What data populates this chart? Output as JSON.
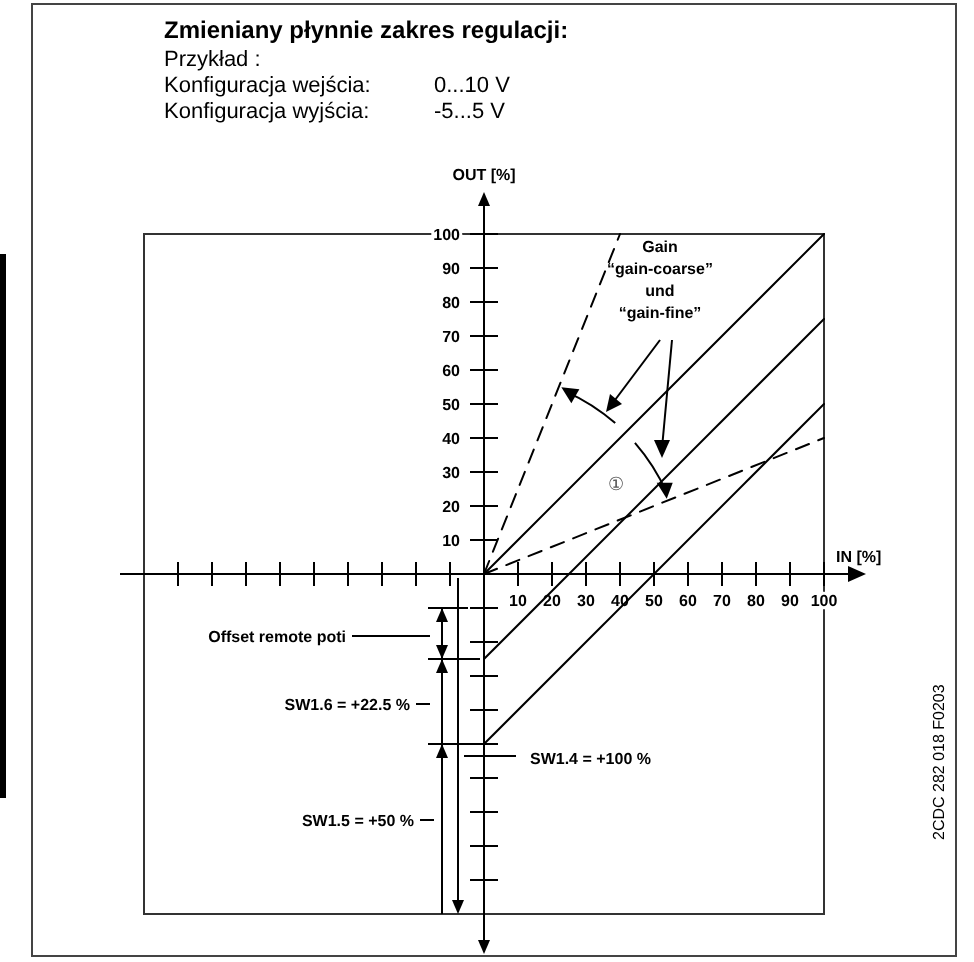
{
  "chart_data": {
    "type": "line",
    "title": "Zmieniany płynnie zakres regulacji:",
    "subtitle": "Przykład :",
    "xlabel": "IN [%]",
    "ylabel": "OUT [%]",
    "xlim": [
      -100,
      100
    ],
    "ylim": [
      -100,
      100
    ],
    "xticks": [
      {
        "value": -90,
        "label": null
      },
      {
        "value": -80,
        "label": null
      },
      {
        "value": -70,
        "label": null
      },
      {
        "value": -60,
        "label": null
      },
      {
        "value": -50,
        "label": null
      },
      {
        "value": -40,
        "label": null
      },
      {
        "value": -30,
        "label": null
      },
      {
        "value": -20,
        "label": null
      },
      {
        "value": -10,
        "label": null
      },
      10,
      20,
      30,
      40,
      50,
      60,
      70,
      80,
      90,
      100
    ],
    "yticks": [
      {
        "value": -90,
        "label": null
      },
      {
        "value": -80,
        "label": null
      },
      {
        "value": -70,
        "label": null
      },
      {
        "value": -60,
        "label": null
      },
      {
        "value": -50,
        "label": null
      },
      {
        "value": -40,
        "label": null
      },
      {
        "value": -30,
        "label": null
      },
      {
        "value": -20,
        "label": null
      },
      {
        "value": -10,
        "label": null
      },
      10,
      20,
      30,
      40,
      50,
      60,
      70,
      80,
      90,
      100
    ],
    "series": [
      {
        "color": "#000000",
        "x": [
          0,
          100
        ],
        "values": [
          0,
          100
        ],
        "line_style": "solid"
      },
      {
        "color": "#000000",
        "x": [
          0,
          100
        ],
        "values": [
          -25,
          75
        ],
        "line_style": "solid"
      },
      {
        "color": "#000000",
        "x": [
          0,
          100
        ],
        "values": [
          -50,
          50
        ],
        "line_style": "solid"
      },
      {
        "color": "#000000",
        "x": [
          0,
          40
        ],
        "values": [
          0,
          100
        ],
        "line_style": "dashed"
      },
      {
        "color": "#000000",
        "x": [
          0,
          100
        ],
        "values": [
          0,
          40
        ],
        "line_style": "dashed"
      }
    ],
    "annotations": [
      "Konfiguracja wejścia:",
      "0...10 V",
      "Konfiguracja wyjścia:",
      "-5...5 V",
      "Gain\n“gain-coarse”\nund\n“gain-fine”",
      "①",
      "Offset remote poti",
      "SW1.6 = +22.5 %",
      "SW1.4 = +100 %",
      "SW1.5 = +50 %",
      "2CDC 282 018 F0203"
    ],
    "grid": false
  }
}
